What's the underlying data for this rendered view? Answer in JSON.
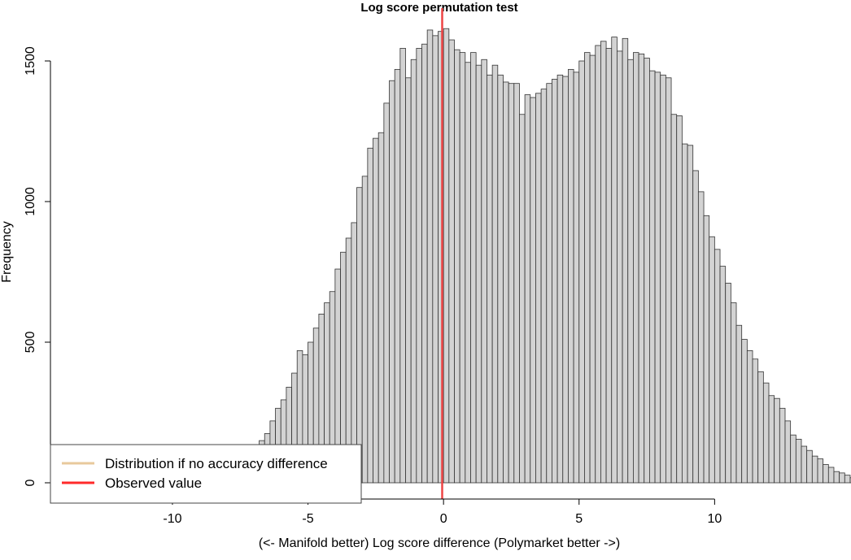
{
  "chart_data": {
    "type": "bar",
    "title": "Log score permutation test",
    "xlabel": "(<- Manifold better) Log score difference (Polymarket better ->)",
    "ylabel": "Frequency",
    "xlim": [
      -14.5,
      13.2
    ],
    "ylim": [
      0,
      1650
    ],
    "xticks": [
      -10,
      -5,
      0,
      5,
      10
    ],
    "xtick_labels": [
      "-10",
      "-5",
      "0",
      "5",
      "10"
    ],
    "yticks": [
      0,
      500,
      1000,
      1500
    ],
    "ytick_labels": [
      "0",
      "500",
      "1000",
      "1500"
    ],
    "bin_start": -9.4,
    "bin_width": 0.2,
    "values": [
      3,
      6,
      10,
      15,
      22,
      30,
      40,
      55,
      70,
      80,
      95,
      110,
      130,
      150,
      175,
      220,
      265,
      295,
      340,
      390,
      470,
      455,
      500,
      550,
      600,
      640,
      680,
      760,
      820,
      870,
      925,
      1050,
      1090,
      1190,
      1225,
      1245,
      1350,
      1430,
      1470,
      1545,
      1440,
      1505,
      1545,
      1560,
      1610,
      1590,
      1605,
      1615,
      1575,
      1540,
      1530,
      1495,
      1530,
      1485,
      1505,
      1450,
      1485,
      1450,
      1425,
      1420,
      1420,
      1310,
      1380,
      1370,
      1385,
      1400,
      1420,
      1435,
      1450,
      1445,
      1470,
      1460,
      1500,
      1530,
      1520,
      1555,
      1570,
      1545,
      1585,
      1535,
      1580,
      1505,
      1530,
      1525,
      1510,
      1465,
      1460,
      1450,
      1440,
      1310,
      1305,
      1205,
      1200,
      1110,
      1035,
      950,
      875,
      830,
      770,
      710,
      640,
      560,
      510,
      470,
      440,
      395,
      355,
      310,
      300,
      265,
      220,
      170,
      155,
      130,
      115,
      95,
      85,
      65,
      55,
      40,
      35,
      27,
      18,
      13,
      10,
      7,
      5,
      4,
      3,
      2,
      1,
      1,
      1,
      1
    ],
    "observed_value": -0.05,
    "legend": {
      "placement": "bottom-left",
      "entries": [
        {
          "label": "Distribution if no accuracy difference",
          "color": "#e8c99c"
        },
        {
          "label": "Observed value",
          "color": "#ff2a2a"
        }
      ]
    },
    "colors": {
      "bar_fill": "#d3d3d3",
      "bar_stroke": "#333333",
      "observed_line": "#ee4444"
    }
  }
}
